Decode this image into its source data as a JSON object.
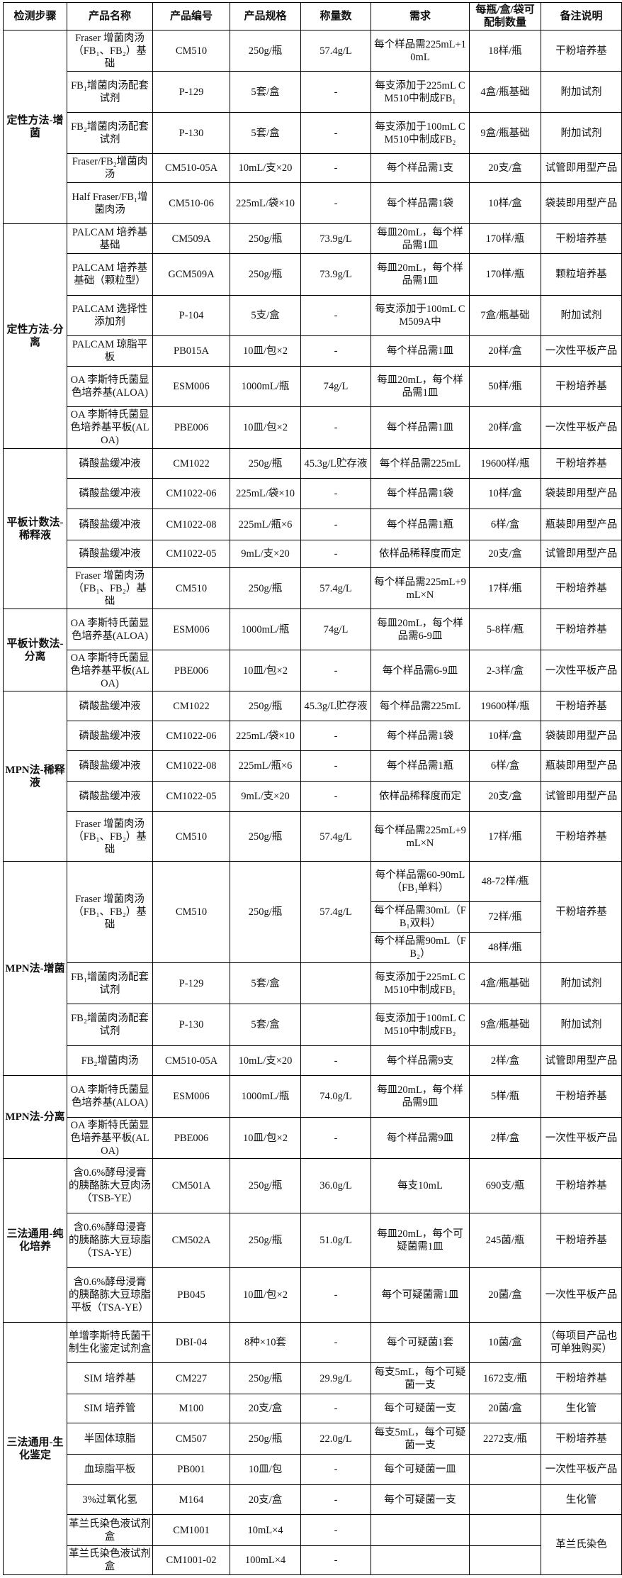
{
  "header": {
    "step": "检测步骤",
    "name": "产品名称",
    "code": "产品编号",
    "spec": "产品规格",
    "weight": "称量数",
    "demand": "需求",
    "yield": "每瓶/盒/袋可配制数量",
    "note": "备注说明"
  },
  "groups": [
    {
      "step": "定性方法-增菌",
      "rows": [
        {
          "name": "Fraser 增菌肉汤（FB₁、FB₂）基础",
          "code": "CM510",
          "spec": "250g/瓶",
          "weight": "57.4g/L",
          "demand": "每个样品需225mL+10mL",
          "yield": "18样/瓶",
          "note": "干粉培养基"
        },
        {
          "name": "FB₁增菌肉汤配套试剂",
          "code": "P-129",
          "spec": "5套/盒",
          "weight": "-",
          "demand": "每支添加于225mL CM510中制成FB₁",
          "yield": "4盒/瓶基础",
          "note": "附加试剂"
        },
        {
          "name": "FB₂增菌肉汤配套试剂",
          "code": "P-130",
          "spec": "5套/盒",
          "weight": "-",
          "demand": "每支添加于100mL CM510中制成FB₂",
          "yield": "9盒/瓶基础",
          "note": "附加试剂"
        },
        {
          "name": "Fraser/FB₂增菌肉汤",
          "code": "CM510-05A",
          "spec": "10mL/支×20",
          "weight": "-",
          "demand": "每个样品需1支",
          "yield": "20支/盒",
          "note": "试管即用型产品"
        },
        {
          "name": "Half Fraser/FB₁增菌肉汤",
          "code": "CM510-06",
          "spec": "225mL/袋×10",
          "weight": "-",
          "demand": "每个样品需1袋",
          "yield": "10样/盒",
          "note": "袋装即用型产品"
        }
      ]
    },
    {
      "step": "定性方法-分离",
      "rows": [
        {
          "name": "PALCAM 培养基基础",
          "code": "CM509A",
          "spec": "250g/瓶",
          "weight": "73.9g/L",
          "demand": "每皿20mL，每个样品需1皿",
          "yield": "170样/瓶",
          "note": "干粉培养基"
        },
        {
          "name": "PALCAM 培养基基础（颗粒型）",
          "code": "GCM509A",
          "spec": "250g/瓶",
          "weight": "73.9g/L",
          "demand": "每皿20mL，每个样品需1皿",
          "yield": "170样/瓶",
          "note": "颗粒培养基"
        },
        {
          "name": "PALCAM 选择性添加剂",
          "code": "P-104",
          "spec": "5支/盒",
          "weight": "-",
          "demand": "每支添加于100mL CM509A中",
          "yield": "7盒/瓶基础",
          "note": "附加试剂"
        },
        {
          "name": "PALCAM 琼脂平板",
          "code": "PB015A",
          "spec": "10皿/包×2",
          "weight": "-",
          "demand": "每个样品需1皿",
          "yield": "20样/盒",
          "note": "一次性平板产品"
        },
        {
          "name": "OA 李斯特氏菌显色培养基(ALOA)",
          "code": "ESM006",
          "spec": "1000mL/瓶",
          "weight": "74g/L",
          "demand": "每皿20mL，每个样品需1皿",
          "yield": "50样/瓶",
          "note": "干粉培养基"
        },
        {
          "name": "OA 李斯特氏菌显色培养基平板(ALOA)",
          "code": "PBE006",
          "spec": "10皿/包×2",
          "weight": "-",
          "demand": "每个样品需1皿",
          "yield": "20样/盒",
          "note": "一次性平板产品"
        }
      ]
    },
    {
      "step": "平板计数法-稀释液",
      "rows": [
        {
          "name": "磷酸盐缓冲液",
          "code": "CM1022",
          "spec": "250g/瓶",
          "weight": "45.3g/L贮存液",
          "demand": "每个样品需225mL",
          "yield": "19600样/瓶",
          "note": "干粉培养基"
        },
        {
          "name": "磷酸盐缓冲液",
          "code": "CM1022-06",
          "spec": "225mL/袋×10",
          "weight": "-",
          "demand": "每个样品需1袋",
          "yield": "10样/盒",
          "note": "袋装即用型产品"
        },
        {
          "name": "磷酸盐缓冲液",
          "code": "CM1022-08",
          "spec": "225mL/瓶×6",
          "weight": "-",
          "demand": "每个样品需1瓶",
          "yield": "6样/盒",
          "note": "瓶装即用型产品"
        },
        {
          "name": "磷酸盐缓冲液",
          "code": "CM1022-05",
          "spec": "9mL/支×20",
          "weight": "-",
          "demand": "依样品稀释度而定",
          "yield": "20支/盒",
          "note": "试管即用型产品"
        },
        {
          "name": "Fraser 增菌肉汤（FB₁、FB₂）基础",
          "code": "CM510",
          "spec": "250g/瓶",
          "weight": "57.4g/L",
          "demand": "每个样品需225mL+9mL×N",
          "yield": "17样/瓶",
          "note": "干粉培养基"
        }
      ]
    },
    {
      "step": "平板计数法-分离",
      "rows": [
        {
          "name": "OA 李斯特氏菌显色培养基(ALOA)",
          "code": "ESM006",
          "spec": "1000mL/瓶",
          "weight": "74g/L",
          "demand": "每皿20mL，每个样品需6-9皿",
          "yield": "5-8样/瓶",
          "note": "干粉培养基"
        },
        {
          "name": "OA 李斯特氏菌显色培养基平板(ALOA)",
          "code": "PBE006",
          "spec": "10皿/包×2",
          "weight": "-",
          "demand": "每个样品需6-9皿",
          "yield": "2-3样/盒",
          "note": "一次性平板产品"
        }
      ]
    },
    {
      "step": "MPN法-稀释液",
      "rows": [
        {
          "name": "磷酸盐缓冲液",
          "code": "CM1022",
          "spec": "250g/瓶",
          "weight": "45.3g/L贮存液",
          "demand": "每个样品需225mL",
          "yield": "19600样/瓶",
          "note": "干粉培养基"
        },
        {
          "name": "磷酸盐缓冲液",
          "code": "CM1022-06",
          "spec": "225mL/袋×10",
          "weight": "-",
          "demand": "每个样品需1袋",
          "yield": "10样/盒",
          "note": "袋装即用型产品"
        },
        {
          "name": "磷酸盐缓冲液",
          "code": "CM1022-08",
          "spec": "225mL/瓶×6",
          "weight": "-",
          "demand": "每个样品需1瓶",
          "yield": "6样/盒",
          "note": "瓶装即用型产品"
        },
        {
          "name": "磷酸盐缓冲液",
          "code": "CM1022-05",
          "spec": "9mL/支×20",
          "weight": "-",
          "demand": "依样品稀释度而定",
          "yield": "20支/盒",
          "note": "试管即用型产品"
        },
        {
          "name": "Fraser 增菌肉汤（FB₁、FB₂）基础",
          "code": "CM510",
          "spec": "250g/瓶",
          "weight": "57.4g/L",
          "demand": "每个样品需225mL+9mL×N",
          "yield": "17样/瓶",
          "note": "干粉培养基"
        }
      ]
    },
    {
      "step": "MPN法-增菌",
      "rows": [
        {
          "name": "Fraser 增菌肉汤（FB₁、FB₂）基础",
          "code": "CM510",
          "spec": "250g/瓶",
          "weight": "57.4g/L",
          "demand": [
            "每个样品需60-90mL（FB₁单料）",
            "每个样品需30mL（FB₁双料）",
            "每个样品需90mL（FB₂）"
          ],
          "yield": [
            "48-72样/瓶",
            "72样/瓶",
            "48样/瓶"
          ],
          "note": "干粉培养基"
        },
        {
          "name": "FB₁增菌肉汤配套试剂",
          "code": "P-129",
          "spec": "5套/盒",
          "weight": "",
          "demand": "每支添加于225mL CM510中制成FB₁",
          "yield": "4盒/瓶基础",
          "note": "附加试剂"
        },
        {
          "name": "FB₂增菌肉汤配套试剂",
          "code": "P-130",
          "spec": "5套/盒",
          "weight": "",
          "demand": "每支添加于100mL CM510中制成FB₂",
          "yield": "9盒/瓶基础",
          "note": "附加试剂"
        },
        {
          "name": "FB₂增菌肉汤",
          "code": "CM510-05A",
          "spec": "10mL/支×20",
          "weight": "-",
          "demand": "每个样品需9支",
          "yield": "2样/盒",
          "note": "试管即用型产品"
        }
      ]
    },
    {
      "step": "MPN法-分离",
      "rows": [
        {
          "name": "OA 李斯特氏菌显色培养基(ALOA)",
          "code": "ESM006",
          "spec": "1000mL/瓶",
          "weight": "74.0g/L",
          "demand": "每皿20mL，每个样品需9皿",
          "yield": "5样/瓶",
          "note": "干粉培养基"
        },
        {
          "name": "OA 李斯特氏菌显色培养基平板(ALOA)",
          "code": "PBE006",
          "spec": "10皿/包×2",
          "weight": "-",
          "demand": "每个样品需9皿",
          "yield": "2样/盒",
          "note": "一次性平板产品"
        }
      ]
    },
    {
      "step": "三法通用-纯化培养",
      "rows": [
        {
          "name": "含0.6%酵母浸膏的胰酪胨大豆肉汤（TSB-YE）",
          "code": "CM501A",
          "spec": "250g/瓶",
          "weight": "36.0g/L",
          "demand": "每支10mL",
          "yield": "690支/瓶",
          "note": "干粉培养基"
        },
        {
          "name": "含0.6%酵母浸膏的胰酪胨大豆琼脂（TSA-YE）",
          "code": "CM502A",
          "spec": "250g/瓶",
          "weight": "51.0g/L",
          "demand": "每皿20mL，每个可疑菌需1皿",
          "yield": "245菌/瓶",
          "note": "干粉培养基"
        },
        {
          "name": "含0.6%酵母浸膏的胰酪胨大豆琼脂平板（TSA-YE）",
          "code": "PB045",
          "spec": "10皿/包×2",
          "weight": "-",
          "demand": "每个可疑菌需1皿",
          "yield": "20菌/盒",
          "note": "一次性平板产品"
        }
      ]
    },
    {
      "step": "三法通用-生化鉴定",
      "rows": [
        {
          "name": "单增李斯特氏菌干制生化鉴定试剂盒",
          "code": "DBI-04",
          "spec": "8种×10套",
          "weight": "-",
          "demand": "每个可疑菌1套",
          "yield": "10菌/盒",
          "note": "（每项目产品也可单独购买）"
        },
        {
          "name": "SIM 培养基",
          "code": "CM227",
          "spec": "250g/瓶",
          "weight": "29.9g/L",
          "demand": "每支5mL，每个可疑菌一支",
          "yield": "1672支/瓶",
          "note": "干粉培养基"
        },
        {
          "name": "SIM 培养管",
          "code": "M100",
          "spec": "20支/盒",
          "weight": "-",
          "demand": "每个可疑菌一支",
          "yield": "20菌/盒",
          "note": "生化管"
        },
        {
          "name": "半固体琼脂",
          "code": "CM507",
          "spec": "250g/瓶",
          "weight": "22.0g/L",
          "demand": "每支5mL，每个可疑菌一支",
          "yield": "2272支/瓶",
          "note": "干粉培养基"
        },
        {
          "name": "血琼脂平板",
          "code": "PB001",
          "spec": "10皿/包",
          "weight": "-",
          "demand": "每个可疑菌一皿",
          "yield": "",
          "note": "一次性平板产品"
        },
        {
          "name": "3%过氧化氢",
          "code": "M164",
          "spec": "20支/盒",
          "weight": "-",
          "demand": "每个可疑菌一支",
          "yield": "",
          "note": "生化管"
        },
        {
          "name": "革兰氏染色液试剂盒",
          "code": "CM1001",
          "spec": "10mL×4",
          "weight": "-",
          "demand": "",
          "yield": "",
          "note": "革兰氏染色"
        },
        {
          "name": "革兰氏染色液试剂盒",
          "code": "CM1001-02",
          "spec": "100mL×4",
          "weight": "-",
          "demand": "",
          "yield": ""
        }
      ]
    }
  ]
}
